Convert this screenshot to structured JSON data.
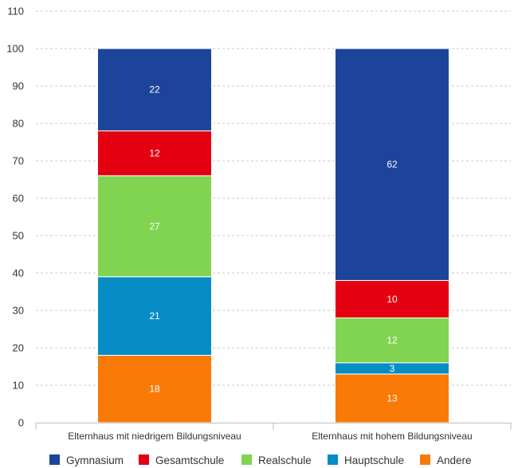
{
  "chart_data": {
    "type": "bar",
    "stacked": true,
    "categories": [
      "Elternhaus mit niedrigem Bildungsniveau",
      "Elternhaus mit hohem Bildungsniveau"
    ],
    "series": [
      {
        "name": "Andere",
        "color": "#F97A06",
        "values": [
          18,
          13
        ]
      },
      {
        "name": "Hauptschule",
        "color": "#078DC5",
        "values": [
          21,
          3
        ]
      },
      {
        "name": "Realschule",
        "color": "#80D451",
        "values": [
          27,
          12
        ]
      },
      {
        "name": "Gesamtschule",
        "color": "#E40010",
        "values": [
          12,
          10
        ]
      },
      {
        "name": "Gymnasium",
        "color": "#1C449A",
        "values": [
          22,
          62
        ]
      }
    ],
    "legend_order": [
      "Gymnasium",
      "Gesamtschule",
      "Realschule",
      "Hauptschule",
      "Andere"
    ],
    "ylim": [
      0,
      110
    ],
    "yticks": [
      0,
      10,
      20,
      30,
      40,
      50,
      60,
      70,
      80,
      90,
      100,
      110
    ],
    "grid": true,
    "legend_position": "bottom",
    "title": "",
    "xlabel": "",
    "ylabel": ""
  }
}
